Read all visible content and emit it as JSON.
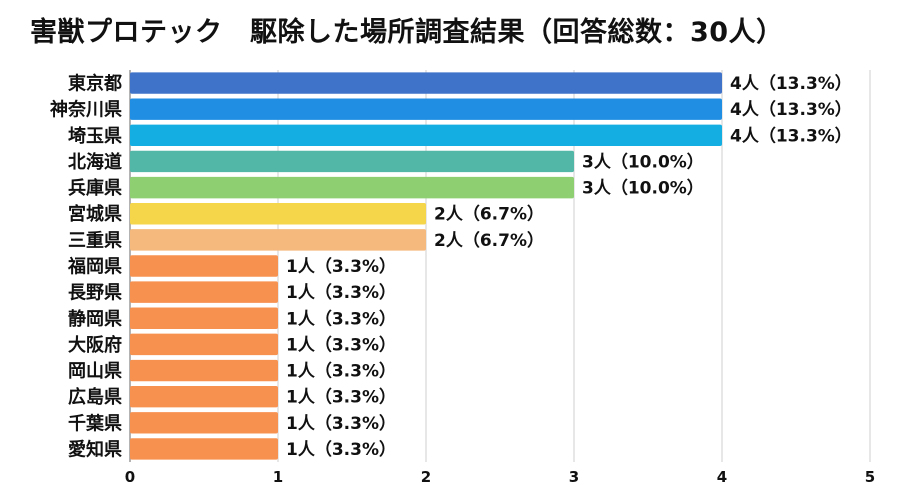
{
  "chart_data": {
    "type": "bar",
    "orientation": "horizontal",
    "title": "害獣プロテック　駆除した場所調査結果（回答総数：30人）",
    "categories": [
      "東京都",
      "神奈川県",
      "埼玉県",
      "北海道",
      "兵庫県",
      "宮城県",
      "三重県",
      "福岡県",
      "長野県",
      "静岡県",
      "大阪府",
      "岡山県",
      "広島県",
      "千葉県",
      "愛知県"
    ],
    "values": [
      4,
      4,
      4,
      3,
      3,
      2,
      2,
      1,
      1,
      1,
      1,
      1,
      1,
      1,
      1
    ],
    "value_labels": [
      "4人（13.3%）",
      "4人（13.3%）",
      "4人（13.3%）",
      "3人（10.0%）",
      "3人（10.0%）",
      "2人（6.7%）",
      "2人（6.7%）",
      "1人（3.3%）",
      "1人（3.3%）",
      "1人（3.3%）",
      "1人（3.3%）",
      "1人（3.3%）",
      "1人（3.3%）",
      "1人（3.3%）",
      "1人（3.3%）"
    ],
    "colors": [
      "#3f73c9",
      "#1f8ee3",
      "#14aee2",
      "#52b7a6",
      "#8ecf72",
      "#f5d54a",
      "#f5b97d",
      "#f79150",
      "#f79150",
      "#f79150",
      "#f79150",
      "#f79150",
      "#f79150",
      "#f79150",
      "#f79150"
    ],
    "xlim": [
      0,
      5
    ],
    "xticks": [
      "0",
      "1",
      "2",
      "3",
      "4",
      "5"
    ],
    "grid": true,
    "xlabel": "",
    "ylabel": ""
  }
}
